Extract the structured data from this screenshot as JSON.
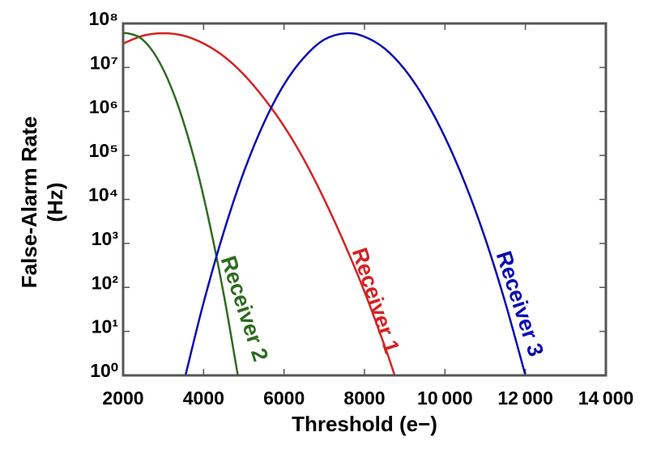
{
  "chart_data": {
    "type": "line",
    "xlabel": "Threshold (e−)",
    "ylabel": [
      "False-Alarm Rate",
      "(Hz)"
    ],
    "log_y": true,
    "xlim": [
      2000,
      14000
    ],
    "ylim": [
      1,
      100000000
    ],
    "xticks": [
      2000,
      4000,
      6000,
      8000,
      {
        "value": 10000,
        "label": "10 000"
      },
      {
        "value": 12000,
        "label": "12 000"
      },
      {
        "value": 14000,
        "label": "14 000"
      }
    ],
    "yticks": [
      {
        "value": 1,
        "label": "10⁰"
      },
      {
        "value": 10,
        "label": "10¹"
      },
      {
        "value": 100,
        "label": "10²"
      },
      {
        "value": 1000,
        "label": "10³"
      },
      {
        "value": 10000,
        "label": "10⁴"
      },
      {
        "value": 100000,
        "label": "10⁵"
      },
      {
        "value": 1000000,
        "label": "10⁶"
      },
      {
        "value": 10000000,
        "label": "10⁷"
      },
      {
        "value": 100000000,
        "label": "10⁸"
      }
    ],
    "series": [
      {
        "name": "Receiver 1",
        "color": "#d42222",
        "x": [
          2000,
          2500,
          3000,
          3500,
          4000,
          4500,
          5000,
          5500,
          6000,
          6500,
          7000,
          7500,
          8000,
          8500,
          8750
        ],
        "values": [
          35000000.0,
          53000000.0,
          60000000.0,
          53000000.0,
          35000000.0,
          18000000.0,
          6900000.0,
          2000000.0,
          460000.0,
          79000.0,
          10000.0,
          1000.0,
          80,
          4.7,
          1.0
        ]
      },
      {
        "name": "Receiver 2",
        "color": "#2e6b1f",
        "x": [
          2000,
          2100,
          2400,
          2700,
          3000,
          3300,
          3600,
          3900,
          4200,
          4500,
          4800,
          4850
        ],
        "values": [
          59000000.0,
          60000000.0,
          49000000.0,
          26000000.0,
          8900000.0,
          2000000.0,
          290000.0,
          28000.0,
          1700.0,
          71,
          1.9,
          1.0
        ]
      },
      {
        "name": "Receiver 3",
        "color": "#0a0ab4",
        "x": [
          3550,
          4000,
          4500,
          5000,
          5500,
          6000,
          6500,
          7000,
          7550,
          8000,
          8500,
          9000,
          9500,
          10000,
          10500,
          11000,
          11500,
          12000
        ],
        "values": [
          1.0,
          45,
          1800.0,
          42000.0,
          550000.0,
          4100000.0,
          17000000.0,
          43000000.0,
          60000000.0,
          50000000.0,
          27000000.0,
          9000000.0,
          1900000.0,
          260000.0,
          23000.0,
          1300.0,
          45,
          1.0
        ]
      }
    ]
  }
}
